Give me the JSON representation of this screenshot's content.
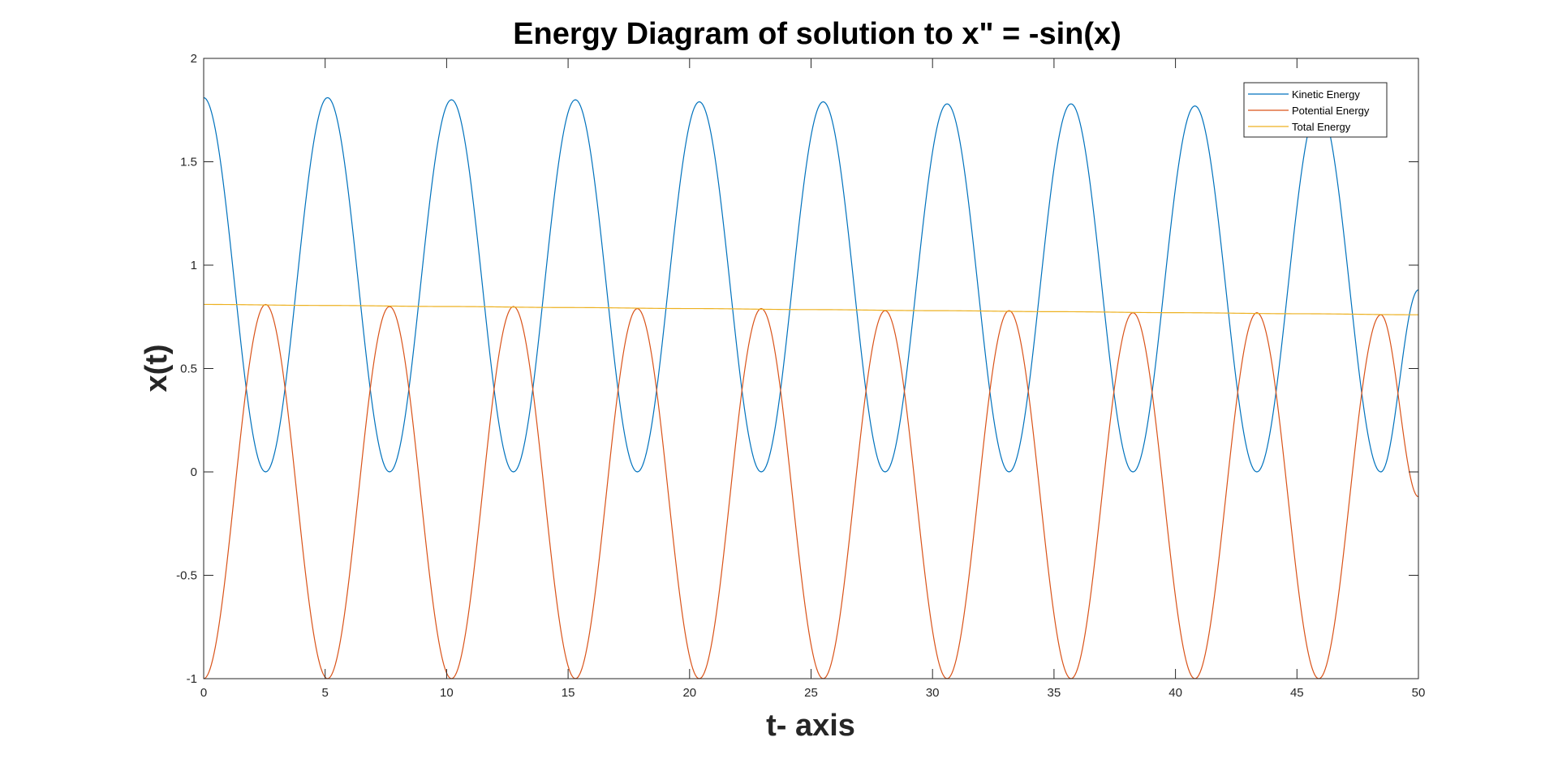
{
  "chart_data": {
    "type": "line",
    "title": "Energy Diagram of solution to x\" = -sin(x)",
    "xlabel": "t- axis",
    "ylabel": "x(t)",
    "xlim": [
      0,
      50
    ],
    "ylim": [
      -1,
      2
    ],
    "xticks": [
      0,
      5,
      10,
      15,
      20,
      25,
      30,
      35,
      40,
      45,
      50
    ],
    "yticks": [
      -1,
      -0.5,
      0,
      0.5,
      1,
      1.5,
      2
    ],
    "xtick_labels": [
      "0",
      "5",
      "10",
      "15",
      "20",
      "25",
      "30",
      "35",
      "40",
      "45",
      "50"
    ],
    "ytick_labels": [
      "-1",
      "-0.5",
      "0",
      "0.5",
      "1",
      "1.5",
      "2"
    ],
    "grid": false,
    "legend_position": "top-right",
    "series": [
      {
        "name": "Kinetic Energy",
        "color": "#0072BD",
        "x": [
          0,
          2.55,
          5.1,
          7.65,
          10.2,
          12.75,
          15.3,
          17.85,
          20.4,
          22.95,
          25.5,
          28.05,
          30.6,
          33.15,
          35.7,
          38.25,
          40.8,
          43.35,
          45.9,
          48.45,
          50
        ],
        "y": [
          1.81,
          0,
          1.81,
          0,
          1.8,
          0,
          1.8,
          0,
          1.79,
          0,
          1.79,
          0,
          1.78,
          0,
          1.78,
          0,
          1.77,
          0,
          1.77,
          0,
          0.88
        ]
      },
      {
        "name": "Potential Energy",
        "color": "#D95319",
        "x": [
          0,
          2.55,
          5.1,
          7.65,
          10.2,
          12.75,
          15.3,
          17.85,
          20.4,
          22.95,
          25.5,
          28.05,
          30.6,
          33.15,
          35.7,
          38.25,
          40.8,
          43.35,
          45.9,
          48.45,
          50
        ],
        "y": [
          -1,
          0.81,
          -1,
          0.8,
          -1,
          0.8,
          -1,
          0.79,
          -1,
          0.79,
          -1,
          0.78,
          -1,
          0.78,
          -1,
          0.77,
          -1,
          0.77,
          -1,
          0.76,
          -0.12
        ]
      },
      {
        "name": "Total Energy",
        "color": "#EDB120",
        "x": [
          0,
          5,
          10,
          15,
          20,
          25,
          30,
          35,
          40,
          45,
          50
        ],
        "y": [
          0.81,
          0.805,
          0.8,
          0.795,
          0.79,
          0.785,
          0.78,
          0.775,
          0.77,
          0.765,
          0.76
        ]
      }
    ]
  }
}
